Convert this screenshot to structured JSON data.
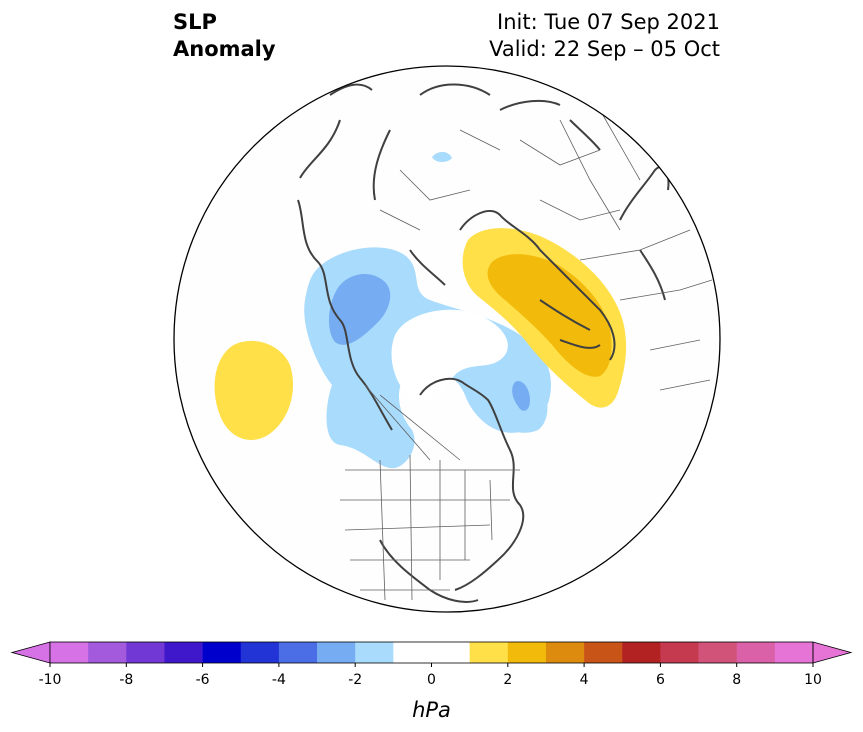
{
  "title": {
    "left_line1": "SLP",
    "left_line2": "Anomaly",
    "right_line1": "Init: Tue 07 Sep 2021",
    "right_line2": "Valid: 22 Sep – 05 Oct"
  },
  "colorbar": {
    "unit_label": "hPa",
    "ticks": [
      "-10",
      "-8",
      "-6",
      "-4",
      "-2",
      "0",
      "2",
      "4",
      "6",
      "8",
      "10"
    ],
    "colors": [
      "#d671e6",
      "#a35add",
      "#7238d6",
      "#3f18cc",
      "#0000cc",
      "#2334d6",
      "#4b6ee6",
      "#76acf2",
      "#a8dbfc",
      "#ffffff",
      "#ffe049",
      "#f2bb0c",
      "#dd8b0e",
      "#c95418",
      "#b22222",
      "#c63a4f",
      "#d1537a",
      "#da61a8",
      "#e673d6"
    ],
    "levels": [
      -10,
      -9,
      -8,
      -7,
      -6,
      -5,
      -4,
      -3,
      -2,
      -1,
      1,
      2,
      3,
      4,
      5,
      6,
      7,
      8,
      9,
      10
    ]
  },
  "map": {
    "projection": "north-polar-stereographic",
    "anomalies": [
      {
        "name": "negative-anomaly-north-pacific-alaska",
        "color": "#a8dbfc",
        "level": "-1 to -2 hPa"
      },
      {
        "name": "negative-anomaly-core-alaska",
        "color": "#76acf2",
        "level": "-2 to -3 hPa"
      },
      {
        "name": "negative-anomaly-greenland",
        "color": "#a8dbfc",
        "level": "-1 to -2 hPa"
      },
      {
        "name": "negative-anomaly-greenland-core",
        "color": "#76acf2",
        "level": "-2 to -3 hPa"
      },
      {
        "name": "positive-anomaly-pacific",
        "color": "#ffe049",
        "level": "1 to 2 hPa"
      },
      {
        "name": "positive-anomaly-scandinavia-russia",
        "color": "#ffe049",
        "level": "1 to 2 hPa"
      },
      {
        "name": "positive-anomaly-scandinavia-core",
        "color": "#f2bb0c",
        "level": "2 to 3 hPa"
      }
    ]
  }
}
